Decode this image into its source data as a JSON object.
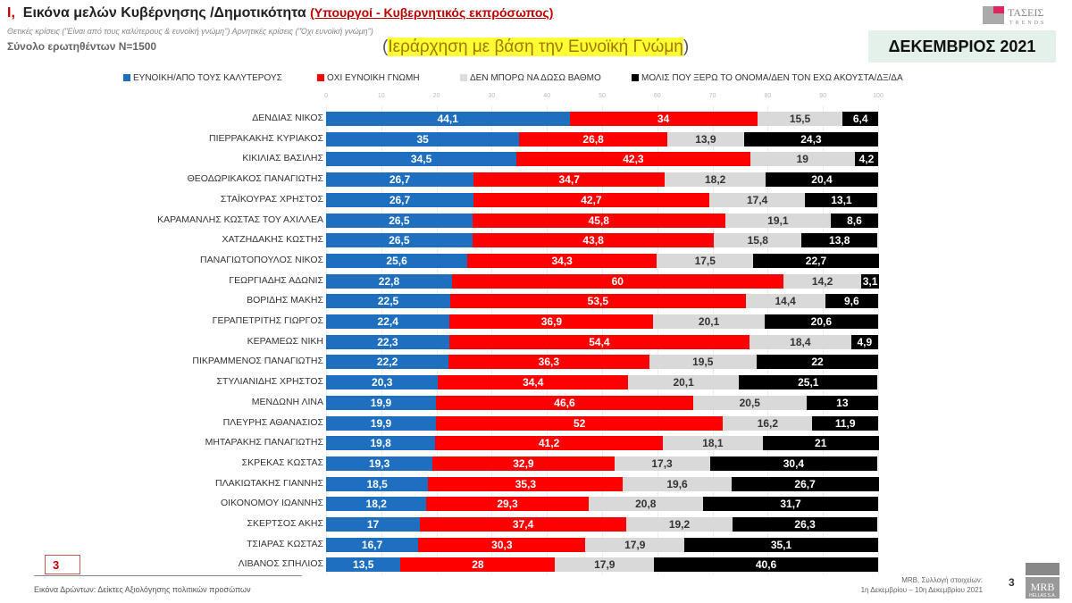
{
  "header": {
    "title_num": "I.",
    "title": "Εικόνα μελών Κυβέρνησης /Δημοτικότητα",
    "title_sub": "(Υπουργοί - Κυβερνητικός εκπρόσωπος)",
    "note": "Θετικές κρίσεις (\"Είναι από τους καλύτερους & ευνοϊκή γνώμη\") Αρνητικές κρίσεις (\"Όχι ευνοϊκή γνώμη\")",
    "sample": "Σύνολο ερωτηθέντων N=1500",
    "rank_open": "(",
    "rank": "Ιεράρχηση με βάση την Ευνοϊκή Γνώμη",
    "rank_close": ")",
    "month": "ΔΕΚΕΜΒΡΙΟΣ 2021",
    "logo": "ΤΑΣΕΙΣ TRENDS"
  },
  "footer": {
    "page_box": "3",
    "caption": "Εικόνα Δρώντων: Δείκτες Αξιολόγησης πολιτικών προσώπων",
    "source1": "MRB, Συλλογή στοιχείων:",
    "source2": "1η Δεκεμβρίου – 10η Δεκεμβρίου 2021",
    "page": "3",
    "logo": "MRB HELLAS S.A."
  },
  "chart_data": {
    "type": "bar",
    "stacked": true,
    "orientation": "horizontal",
    "xlim": [
      0,
      100
    ],
    "ticks": [
      "0",
      "10",
      "20",
      "30",
      "40",
      "50",
      "60",
      "70",
      "80",
      "90",
      "100"
    ],
    "legend_position": "top",
    "categories": [
      "ΔΕΝΔΙΑΣ ΝΙΚΟΣ",
      "ΠΙΕΡΡΑΚΑΚΗΣ ΚΥΡΙΑΚΟΣ",
      "ΚΙΚΙΛΙΑΣ ΒΑΣΙΛΗΣ",
      "ΘΕΟΔΩΡΙΚΑΚΟΣ ΠΑΝΑΓΙΩΤΗΣ",
      "ΣΤΑΪΚΟΥΡΑΣ ΧΡΗΣΤΟΣ",
      "ΚΑΡΑΜΑΝΛΗΣ ΚΩΣΤΑΣ ΤΟΥ ΑΧΙΛΛΕΑ",
      "ΧΑΤΖΗΔΑΚΗΣ ΚΩΣΤΗΣ",
      "ΠΑΝΑΓΙΩΤΟΠΟΥΛΟΣ ΝΙΚΟΣ",
      "ΓΕΩΡΓΙΑΔΗΣ ΑΔΩΝΙΣ",
      "ΒΟΡΙΔΗΣ ΜΑΚΗΣ",
      "ΓΕΡΑΠΕΤΡΙΤΗΣ ΓΙΩΡΓΟΣ",
      "ΚΕΡΑΜΕΩΣ ΝΙΚΗ",
      "ΠΙΚΡΑΜΜΕΝΟΣ ΠΑΝΑΓΙΩΤΗΣ",
      "ΣΤΥΛΙΑΝΙΔΗΣ ΧΡΗΣΤΟΣ",
      "ΜΕΝΔΩΝΗ ΛΙΝΑ",
      "ΠΛΕΥΡΗΣ ΑΘΑΝΑΣΙΟΣ",
      "ΜΗΤΑΡΑΚΗΣ ΠΑΝΑΓΙΩΤΗΣ",
      "ΣΚΡΕΚΑΣ ΚΩΣΤΑΣ",
      "ΠΛΑΚΙΩΤΑΚΗΣ ΓΙΑΝΝΗΣ",
      "ΟΙΚΟΝΟΜΟΥ ΙΩΑΝΝΗΣ",
      "ΣΚΕΡΤΣΟΣ ΑΚΗΣ",
      "ΤΣΙΑΡΑΣ ΚΩΣΤΑΣ",
      "ΛΙΒΑΝΟΣ ΣΠΗΛΙΟΣ"
    ],
    "series": [
      {
        "name": "ΕΥΝΟΙΚΗ/ΑΠΟ ΤΟΥΣ ΚΑΛΥΤΕΡΟΥΣ",
        "color": "#1f6fc0",
        "label_color": "#ffffff",
        "values": [
          44.1,
          35,
          34.5,
          26.7,
          26.7,
          26.5,
          26.5,
          25.6,
          22.8,
          22.5,
          22.4,
          22.3,
          22.2,
          20.3,
          19.9,
          19.9,
          19.8,
          19.3,
          18.5,
          18.2,
          17,
          16.7,
          13.5
        ]
      },
      {
        "name": "ΟΧΙ ΕΥΝΟΙΚΗ ΓΝΩΜΗ",
        "color": "#ff0000",
        "label_color": "#ffffff",
        "values": [
          34,
          26.8,
          42.3,
          34.7,
          42.7,
          45.8,
          43.8,
          34.3,
          60,
          53.5,
          36.9,
          54.4,
          36.3,
          34.4,
          46.6,
          52,
          41.2,
          32.9,
          35.3,
          29.3,
          37.4,
          30.3,
          28
        ]
      },
      {
        "name": "ΔΕΝ ΜΠΟΡΩ ΝΑ ΔΩΣΩ ΒΑΘΜΟ",
        "color": "#d9d9d9",
        "label_color": "#333333",
        "values": [
          15.5,
          13.9,
          19,
          18.2,
          17.4,
          19.1,
          15.8,
          17.5,
          14.2,
          14.4,
          20.1,
          18.4,
          19.5,
          20.1,
          20.5,
          16.2,
          18.1,
          17.3,
          19.6,
          20.8,
          19.2,
          17.9,
          17.9
        ]
      },
      {
        "name": "ΜΟΛΙΣ ΠΟΥ ΞΕΡΩ ΤΟ ΟΝΟΜΑ/ΔΕΝ ΤΟΝ ΕΧΩ ΑΚΟΥΣΤΑ/ΔΞ/ΔΑ",
        "color": "#000000",
        "label_color": "#ffffff",
        "values": [
          6.4,
          24.3,
          4.2,
          20.4,
          13.1,
          8.6,
          13.8,
          22.7,
          3.1,
          9.6,
          20.6,
          4.9,
          22,
          25.1,
          13,
          11.9,
          21,
          30.4,
          26.7,
          31.7,
          26.3,
          35.1,
          40.6
        ]
      }
    ]
  }
}
